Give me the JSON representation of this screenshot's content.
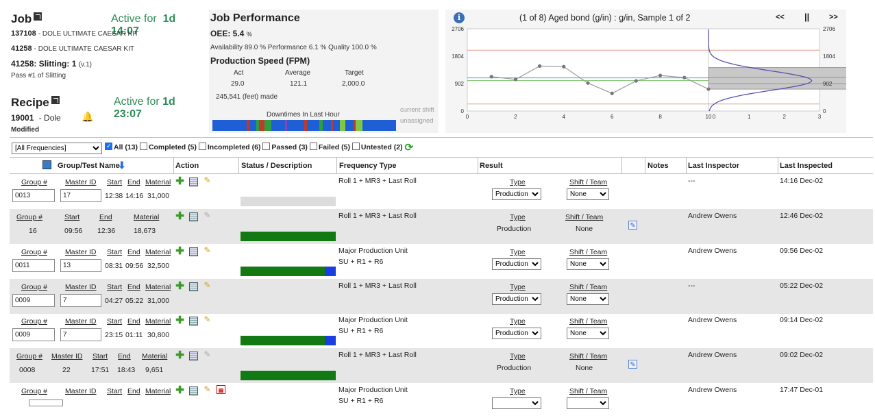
{
  "job": {
    "title": "Job",
    "active_label": "Active for",
    "active_time": "1d 14:07",
    "line1_num": "137108",
    "line1_text": "- DOLE ULTIMATE CAESAR KIT",
    "line2_num": "41258",
    "line2_text": "- DOLE ULTIMATE CAESAR KIT",
    "op_label": "41258: Slitting: 1",
    "op_ver": "(v.1)",
    "pass": "Pass #1 of Slitting"
  },
  "recipe": {
    "title": "Recipe",
    "active_label": "Active for",
    "active_time": "1d 23:07",
    "num": "19001",
    "name": "- Dole",
    "modified": "Modified"
  },
  "perf": {
    "title": "Job Performance",
    "oee_label": "OEE: 5.4",
    "oee_unit": "%",
    "breakdown": "Availability 89.0 % Performance 6.1 % Quality 100.0 %",
    "speed_title": "Production Speed (FPM)",
    "col_act": "Act",
    "col_avg": "Average",
    "col_tgt": "Target",
    "act": "29.0",
    "avg": "121.1",
    "tgt": "2,000.0",
    "made": "245,541 (feet) made",
    "downtimes_label": "Downtimes In Last Hour",
    "shift1": "current shift",
    "shift2": "unassigned"
  },
  "chart": {
    "title": "(1 of 8) Aged bond (g/in) : g/in, Sample 1 of 2",
    "prev": "<<",
    "pause": "||",
    "next": ">>",
    "info_icon": "info-icon",
    "yticks": [
      "2706",
      "1804",
      "902",
      "0"
    ],
    "yticks_right": [
      "2706",
      "1804",
      "902",
      "0"
    ],
    "xticks": [
      "0",
      "2",
      "4",
      "6",
      "8",
      "10"
    ],
    "hticks": [
      "0",
      "1",
      "2",
      "3"
    ]
  },
  "chart_data": {
    "type": "line",
    "title": "(1 of 8) Aged bond (g/in) : g/in, Sample 1 of 2",
    "x": [
      1,
      2,
      3,
      4,
      5,
      6,
      7,
      8,
      9,
      10
    ],
    "values": [
      1130,
      1040,
      1480,
      1460,
      920,
      580,
      990,
      1170,
      1100,
      720
    ],
    "ylim": [
      0,
      2706
    ],
    "xlim": [
      0,
      10
    ],
    "ucl": 2000,
    "lcl": 230,
    "center": 1000,
    "colors": {
      "line": "#999999",
      "limits": "#e39b8f",
      "center": "#5a9bd5",
      "target": "#7bbf6a",
      "curve": "#5b4fb0"
    }
  },
  "filter": {
    "freq": "[All Frequencies]",
    "all": "All (13)",
    "completed": "Completed (5)",
    "incompleted": "Incompleted (6)",
    "passed": "Passed (3)",
    "failed": "Failed (5)",
    "untested": "Untested (2)"
  },
  "headers": {
    "group": "Group/Test Name",
    "action": "Action",
    "status": "Status / Description",
    "freq": "Frequency Type",
    "result": "Result",
    "notes": "Notes",
    "inspector": "Last Inspector",
    "inspected": "Last Inspected"
  },
  "labels": {
    "group": "Group #",
    "master": "Master ID",
    "start": "Start",
    "end": "End",
    "material": "Material",
    "type": "Type",
    "shift": "Shift / Team"
  },
  "rows": [
    {
      "group": "0013",
      "master": "17",
      "start": "12:38",
      "end": "14:16",
      "material": "31,000",
      "freq1": "Roll 1 + MR3 + Last Roll",
      "freq2": "",
      "type": "Production",
      "shift": "None",
      "inspector": "---",
      "inspected": "14:16 Dec-02"
    },
    {
      "group": "16",
      "master": "",
      "start": "09:56",
      "end": "12:36",
      "material": "18,673",
      "freq1": "Roll 1 + MR3 + Last Roll",
      "freq2": "",
      "type": "Production",
      "shift": "None",
      "inspector": "Andrew Owens",
      "inspected": "12:46 Dec-02"
    },
    {
      "group": "0011",
      "master": "13",
      "start": "08:31",
      "end": "09:56",
      "material": "32,500",
      "freq1": "Major Production Unit",
      "freq2": "SU + R1 + R6",
      "type": "Production",
      "shift": "None",
      "inspector": "Andrew Owens",
      "inspected": "09:56 Dec-02"
    },
    {
      "group": "0009",
      "master": "7",
      "start": "04:27",
      "end": "05:22",
      "material": "31,000",
      "freq1": "Roll 1 + MR3 + Last Roll",
      "freq2": "",
      "type": "Production",
      "shift": "None",
      "inspector": "---",
      "inspected": "05:22 Dec-02"
    },
    {
      "group": "0009",
      "master": "7",
      "start": "23:15",
      "end": "01:11",
      "material": "30,800",
      "freq1": "Major Production Unit",
      "freq2": "SU + R1 + R6",
      "type": "Production",
      "shift": "None",
      "inspector": "Andrew Owens",
      "inspected": "09:14 Dec-02"
    },
    {
      "group": "0008",
      "master": "22",
      "start": "17:51",
      "end": "18:43",
      "material": "9,651",
      "freq1": "Roll 1 + MR3 + Last Roll",
      "freq2": "",
      "type": "Production",
      "shift": "None",
      "inspector": "Andrew Owens",
      "inspected": "09:02 Dec-02"
    },
    {
      "group": "",
      "master": "",
      "start": "",
      "end": "",
      "material": "",
      "freq1": "Major Production Unit",
      "freq2": "SU + R1 + R6",
      "type": "",
      "shift": "",
      "inspector": "Andrew Owens",
      "inspected": "17:47 Dec-01"
    }
  ]
}
